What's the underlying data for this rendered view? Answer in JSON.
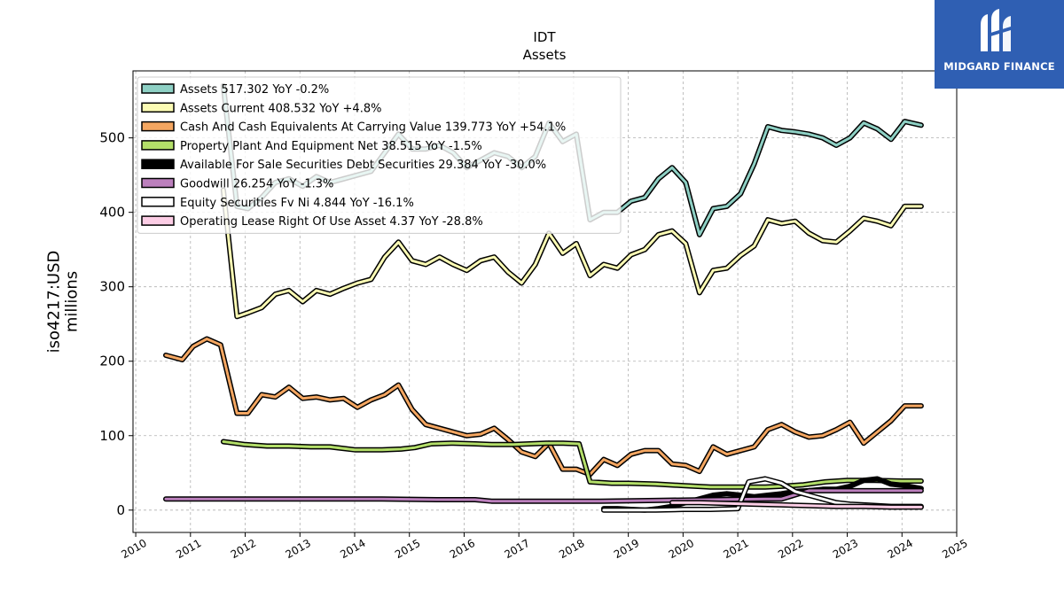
{
  "brand": {
    "name": "MIDGARD FINANCE",
    "color": "#2f5fb3"
  },
  "chart_data": {
    "type": "line",
    "title": "IDT",
    "subtitle": "Assets",
    "ylabel": "iso4217:USD\nmillions",
    "xlabel": "",
    "xlim": [
      2009.95,
      2025.0
    ],
    "ylim": [
      -30,
      590
    ],
    "xticks": [
      2010,
      2011,
      2012,
      2013,
      2014,
      2015,
      2016,
      2017,
      2018,
      2019,
      2020,
      2021,
      2022,
      2023,
      2024,
      2025
    ],
    "yticks": [
      0,
      100,
      200,
      300,
      400,
      500
    ],
    "grid": true,
    "legend": "upper-left",
    "series": [
      {
        "name": "Assets",
        "legend_label": "Assets  517.302 YoY -0.2%",
        "color": "#8ed0c4",
        "x": [
          2011.6,
          2011.85,
          2012.05,
          2012.3,
          2012.55,
          2012.8,
          2013.05,
          2013.3,
          2013.55,
          2013.8,
          2014.05,
          2014.3,
          2014.55,
          2014.8,
          2015.05,
          2015.3,
          2015.55,
          2015.8,
          2016.05,
          2016.3,
          2016.55,
          2016.8,
          2017.05,
          2017.3,
          2017.55,
          2017.8,
          2018.05,
          2018.3,
          2018.55,
          2018.8,
          2019.05,
          2019.3,
          2019.55,
          2019.8,
          2020.05,
          2020.3,
          2020.55,
          2020.8,
          2021.05,
          2021.3,
          2021.55,
          2021.8,
          2022.05,
          2022.3,
          2022.55,
          2022.8,
          2023.05,
          2023.3,
          2023.55,
          2023.8,
          2024.05,
          2024.35
        ],
        "y": [
          570,
          408,
          405,
          420,
          440,
          445,
          435,
          448,
          440,
          445,
          450,
          455,
          480,
          505,
          485,
          485,
          490,
          480,
          460,
          470,
          480,
          475,
          460,
          475,
          520,
          495,
          505,
          390,
          400,
          400,
          415,
          420,
          445,
          460,
          440,
          370,
          405,
          408,
          425,
          465,
          515,
          510,
          508,
          505,
          500,
          490,
          500,
          520,
          512,
          498,
          522,
          517
        ]
      },
      {
        "name": "Assets Current",
        "legend_label": "Assets Current  408.532 YoY +4.8%",
        "color": "#fbfbb4",
        "x": [
          2011.6,
          2011.85,
          2012.05,
          2012.3,
          2012.55,
          2012.8,
          2013.05,
          2013.3,
          2013.55,
          2013.8,
          2014.05,
          2014.3,
          2014.55,
          2014.8,
          2015.05,
          2015.3,
          2015.55,
          2015.8,
          2016.05,
          2016.3,
          2016.55,
          2016.8,
          2017.05,
          2017.3,
          2017.55,
          2017.8,
          2018.05,
          2018.3,
          2018.55,
          2018.8,
          2019.05,
          2019.3,
          2019.55,
          2019.8,
          2020.05,
          2020.3,
          2020.55,
          2020.8,
          2021.05,
          2021.3,
          2021.55,
          2021.8,
          2022.05,
          2022.3,
          2022.55,
          2022.8,
          2023.05,
          2023.3,
          2023.55,
          2023.8,
          2024.05,
          2024.35
        ],
        "y": [
          430,
          260,
          265,
          272,
          290,
          295,
          280,
          295,
          290,
          298,
          305,
          310,
          340,
          360,
          335,
          330,
          340,
          330,
          322,
          335,
          340,
          320,
          305,
          330,
          372,
          345,
          358,
          315,
          330,
          325,
          343,
          350,
          370,
          375,
          358,
          292,
          322,
          325,
          342,
          355,
          390,
          385,
          388,
          372,
          362,
          360,
          375,
          392,
          388,
          382,
          408,
          408
        ]
      },
      {
        "name": "Cash And Cash Equivalents At Carrying Value",
        "legend_label": "Cash And Cash Equivalents At Carrying Value  139.773 YoY +54.1%",
        "color": "#f4a661",
        "x": [
          2010.55,
          2010.85,
          2011.05,
          2011.3,
          2011.55,
          2011.85,
          2012.05,
          2012.3,
          2012.55,
          2012.8,
          2013.05,
          2013.3,
          2013.55,
          2013.8,
          2014.05,
          2014.3,
          2014.55,
          2014.8,
          2015.05,
          2015.3,
          2015.55,
          2015.8,
          2016.05,
          2016.3,
          2016.55,
          2016.8,
          2017.05,
          2017.3,
          2017.55,
          2017.8,
          2018.05,
          2018.3,
          2018.55,
          2018.8,
          2019.05,
          2019.3,
          2019.55,
          2019.8,
          2020.05,
          2020.3,
          2020.55,
          2020.8,
          2021.05,
          2021.3,
          2021.55,
          2021.8,
          2022.05,
          2022.3,
          2022.55,
          2022.8,
          2023.05,
          2023.3,
          2023.55,
          2023.8,
          2024.05,
          2024.35
        ],
        "y": [
          208,
          202,
          220,
          230,
          222,
          130,
          130,
          155,
          152,
          165,
          150,
          152,
          148,
          150,
          138,
          148,
          155,
          168,
          135,
          115,
          110,
          105,
          100,
          102,
          110,
          95,
          78,
          72,
          90,
          55,
          55,
          48,
          68,
          60,
          75,
          80,
          80,
          62,
          60,
          52,
          85,
          75,
          80,
          85,
          108,
          115,
          105,
          98,
          100,
          108,
          118,
          90,
          105,
          120,
          140,
          140
        ]
      },
      {
        "name": "Property Plant And Equipment Net",
        "legend_label": "Property Plant And Equipment Net  38.515 YoY -1.5%",
        "color": "#b3de69",
        "x": [
          2011.6,
          2012.0,
          2012.4,
          2012.8,
          2013.2,
          2013.55,
          2014.0,
          2014.5,
          2014.85,
          2015.1,
          2015.4,
          2015.8,
          2016.2,
          2016.5,
          2016.9,
          2017.2,
          2017.5,
          2017.8,
          2018.1,
          2018.3,
          2018.7,
          2019.0,
          2019.5,
          2020.0,
          2020.5,
          2021.0,
          2021.5,
          2021.8,
          2022.2,
          2022.6,
          2023.0,
          2023.5,
          2024.0,
          2024.35
        ],
        "y": [
          92,
          88,
          86,
          86,
          85,
          85,
          81,
          81,
          82,
          84,
          89,
          90,
          89,
          88,
          88,
          89,
          90,
          90,
          89,
          38,
          36,
          36,
          35,
          33,
          31,
          31,
          31,
          32,
          34,
          38,
          40,
          40,
          39,
          39
        ]
      },
      {
        "name": "Available For Sale Securities Debt Securities",
        "legend_label": "Available For Sale Securities Debt Securities  29.384 YoY -30.0%",
        "color": "#000000",
        "x": [
          2018.55,
          2018.8,
          2019.05,
          2019.3,
          2019.55,
          2019.8,
          2020.05,
          2020.3,
          2020.55,
          2020.8,
          2021.05,
          2021.3,
          2021.55,
          2021.8,
          2022.05,
          2022.3,
          2022.55,
          2022.8,
          2023.05,
          2023.3,
          2023.55,
          2023.8,
          2024.05,
          2024.35
        ],
        "y": [
          2,
          2,
          1,
          0,
          2,
          5,
          10,
          15,
          20,
          22,
          20,
          18,
          20,
          22,
          25,
          26,
          28,
          28,
          32,
          40,
          42,
          35,
          33,
          29
        ]
      },
      {
        "name": "Goodwill",
        "legend_label": "Goodwill  26.254 YoY -1.3%",
        "color": "#bc80bd",
        "x": [
          2010.55,
          2011.5,
          2012.5,
          2013.5,
          2014.5,
          2015.5,
          2016.2,
          2016.5,
          2017.5,
          2018.5,
          2019.5,
          2020.5,
          2021.5,
          2021.8,
          2022.3,
          2023.0,
          2023.5,
          2024.35
        ],
        "y": [
          15,
          15,
          15,
          15,
          15,
          14,
          14,
          12,
          12,
          12,
          13,
          14,
          15,
          15,
          26,
          26,
          26,
          26
        ]
      },
      {
        "name": "Equity Securities Fv Ni",
        "legend_label": "Equity Securities Fv Ni  4.844 YoY -16.1%",
        "color": "#ffffff",
        "x": [
          2018.55,
          2019.0,
          2019.5,
          2020.0,
          2020.5,
          2021.0,
          2021.2,
          2021.5,
          2021.8,
          2022.05,
          2022.3,
          2022.55,
          2022.8,
          2023.05,
          2023.3,
          2023.55,
          2023.8,
          2024.05,
          2024.35
        ],
        "y": [
          0,
          0,
          0,
          1,
          1,
          2,
          38,
          42,
          36,
          25,
          20,
          15,
          10,
          8,
          7,
          6,
          5,
          5,
          5
        ]
      },
      {
        "name": "Operating Lease Right Of Use Asset",
        "legend_label": "Operating Lease Right Of Use Asset  4.37 YoY -28.8%",
        "color": "#fccde5",
        "x": [
          2019.8,
          2020.3,
          2020.8,
          2021.3,
          2021.8,
          2022.3,
          2022.8,
          2023.3,
          2023.8,
          2024.35
        ],
        "y": [
          10,
          10,
          9,
          8,
          7,
          6,
          5,
          5,
          4,
          4
        ]
      }
    ]
  }
}
